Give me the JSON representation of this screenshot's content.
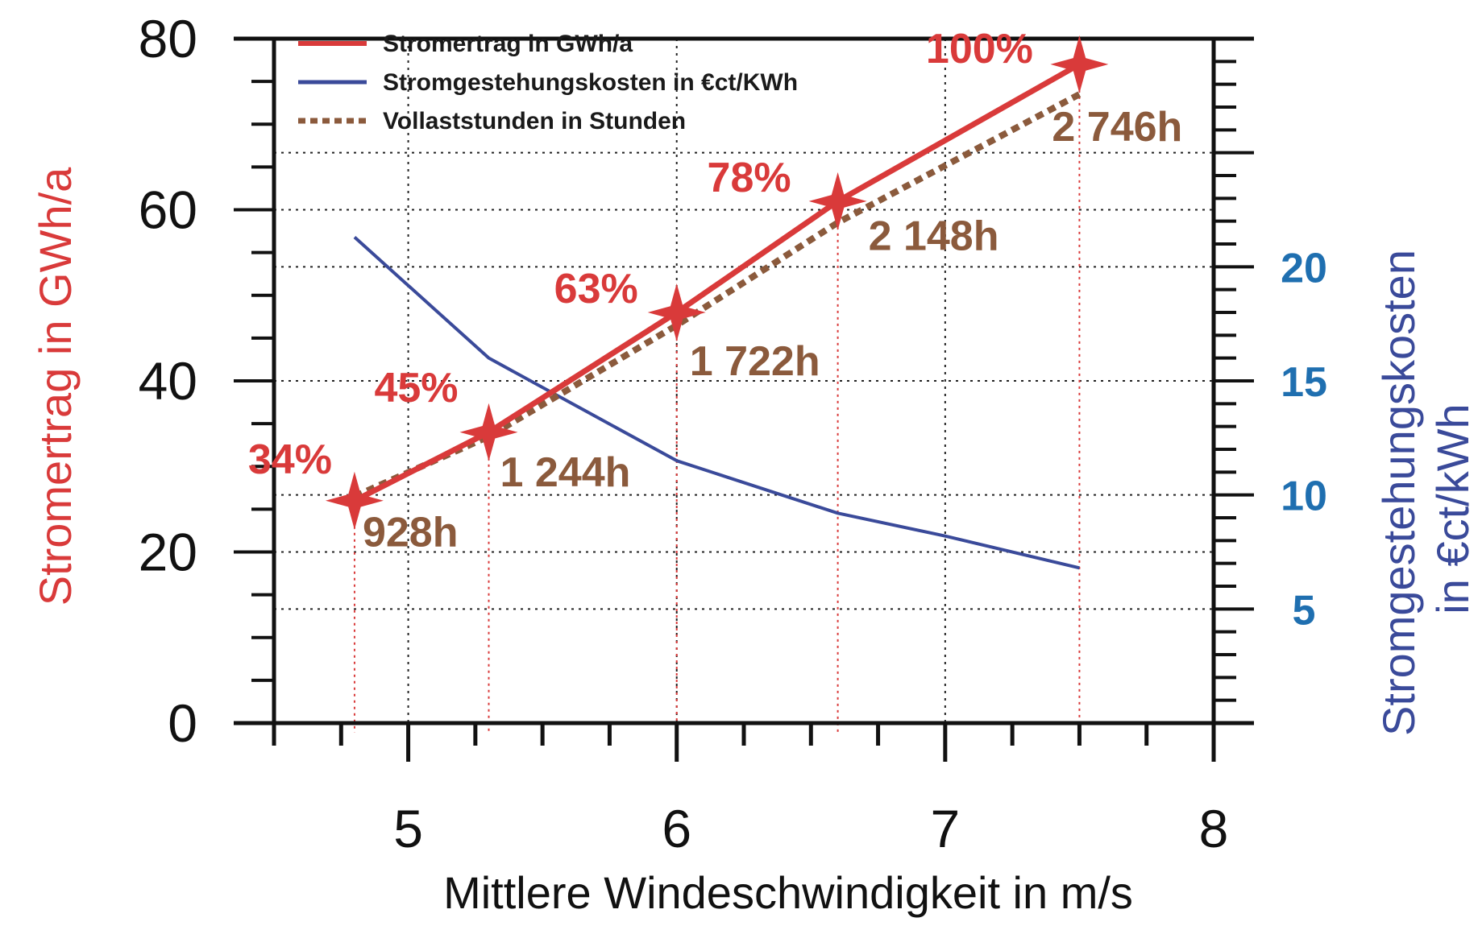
{
  "chart_data": {
    "type": "line",
    "title": "",
    "xlabel": "Mittlere Windeschwindigkeit in m/s",
    "ylabel_left": "Stromertrag in GWh/a",
    "ylabel_right_line1": "Stromgestehungskosten",
    "ylabel_right_line2": "in €ct/kWh",
    "xlim": [
      4.5,
      8
    ],
    "ylim_left": [
      0,
      80
    ],
    "ylim_right": [
      0,
      30
    ],
    "x_ticks": [
      "5",
      "6",
      "7",
      "8"
    ],
    "y_left_ticks": [
      "0",
      "20",
      "40",
      "60",
      "80"
    ],
    "y_right_ticks": [
      "5",
      "10",
      "15",
      "20"
    ],
    "grid": true,
    "legend_position": "top-left",
    "legend": [
      "Stromertrag in GWh/a",
      "Stromgestehungskosten in €ct/KWh",
      "Vollaststunden in Stunden"
    ],
    "series": [
      {
        "name": "Stromertrag in GWh/a",
        "axis": "left",
        "x": [
          4.8,
          5.3,
          6.0,
          6.6,
          7.5
        ],
        "y": [
          26,
          34,
          48,
          61,
          77
        ],
        "point_labels": [
          "34%",
          "45%",
          "63%",
          "78%",
          "100%"
        ]
      },
      {
        "name": "Stromgestehungskosten in €ct/KWh",
        "axis": "right",
        "x": [
          4.8,
          5.3,
          6.0,
          6.6,
          7.0,
          7.5
        ],
        "y": [
          21.3,
          16,
          11.5,
          9.2,
          8.2,
          6.8
        ]
      },
      {
        "name": "Vollaststunden in Stunden",
        "axis": "left",
        "x": [
          4.8,
          5.3,
          6.0,
          6.6,
          7.5
        ],
        "y": [
          26.5,
          33.5,
          46.5,
          58.5,
          73.5
        ],
        "point_labels": [
          "928h",
          "1 244h",
          "1 722h",
          "2 148h",
          "2 746h"
        ]
      }
    ],
    "colors": {
      "stromertrag": "#d93a3a",
      "kosten": "#3a4a9a",
      "vollast": "#8b5a3c",
      "right_ticks": "#1f6fb0",
      "marker_guides": "#d93a3a"
    }
  }
}
